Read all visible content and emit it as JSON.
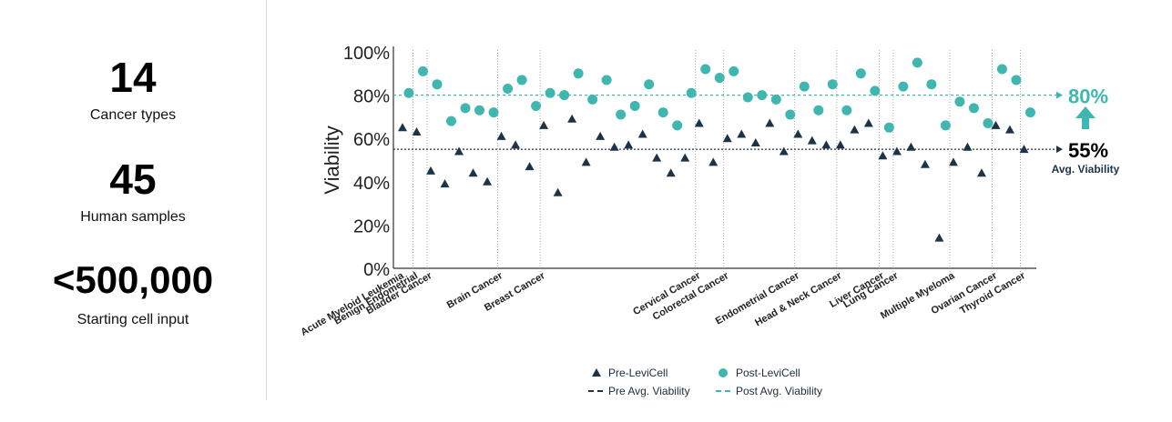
{
  "stats": [
    {
      "value": "14",
      "label": "Cancer types"
    },
    {
      "value": "45",
      "label": "Human samples"
    },
    {
      "value": "<500,000",
      "label": "Starting cell input"
    }
  ],
  "colors": {
    "pre": "#1d3348",
    "post": "#3fb7b0",
    "dark_text": "#000000",
    "gridline": "#999999"
  },
  "chart_data": {
    "type": "scatter",
    "ylabel": "Viability",
    "ylim": [
      0,
      100
    ],
    "yticks": [
      "0%",
      "20%",
      "40%",
      "60%",
      "80%",
      "100%"
    ],
    "categories": [
      {
        "name": "Acute Myeloid Leukemia",
        "pre": [
          65
        ],
        "post": [
          81
        ]
      },
      {
        "name": "Benign Endometrial",
        "pre": [
          63
        ],
        "post": [
          91
        ]
      },
      {
        "name": "Bladder Cancer",
        "pre": [
          45,
          39,
          54,
          44,
          40
        ],
        "post": [
          85,
          68,
          74,
          73,
          72
        ]
      },
      {
        "name": "Brain Cancer",
        "pre": [
          61,
          57,
          47
        ],
        "post": [
          83,
          87,
          75
        ]
      },
      {
        "name": "Breast Cancer",
        "pre": [
          66,
          35,
          69,
          49,
          61,
          56,
          57,
          62,
          51,
          44,
          51
        ],
        "post": [
          81,
          80,
          90,
          78,
          87,
          71,
          75,
          85,
          72,
          66,
          81
        ]
      },
      {
        "name": "Cervical Cancer",
        "pre": [
          67,
          49
        ],
        "post": [
          92,
          88
        ]
      },
      {
        "name": "Colorectal Cancer",
        "pre": [
          60,
          62,
          58,
          67,
          54
        ],
        "post": [
          91,
          79,
          80,
          78,
          71
        ]
      },
      {
        "name": "Endometrial Cancer",
        "pre": [
          62,
          59,
          57
        ],
        "post": [
          84,
          73,
          85
        ]
      },
      {
        "name": "Head & Neck Cancer",
        "pre": [
          57,
          64,
          67
        ],
        "post": [
          73,
          90,
          82
        ]
      },
      {
        "name": "Liver Cancer",
        "pre": [
          52
        ],
        "post": [
          65
        ]
      },
      {
        "name": "Lung Cancer",
        "pre": [
          54,
          56,
          48,
          14
        ],
        "post": [
          84,
          95,
          85,
          66
        ]
      },
      {
        "name": "Multiple Myeloma",
        "pre": [
          49,
          56,
          44
        ],
        "post": [
          77,
          74,
          67
        ]
      },
      {
        "name": "Ovarian Cancer",
        "pre": [
          66,
          64
        ],
        "post": [
          92,
          87
        ]
      },
      {
        "name": "Thyroid Cancer",
        "pre": [
          55
        ],
        "post": [
          72
        ]
      }
    ],
    "averages": {
      "pre": 55,
      "post": 80
    },
    "annotations": {
      "post_avg_label": "80%",
      "pre_avg_label": "55%",
      "avg_caption": "Avg. Viability"
    },
    "legend": {
      "pre_label": "Pre-LeviCell",
      "post_label": "Post-LeviCell",
      "pre_avg_label": "Pre Avg. Viability",
      "post_avg_label": "Post Avg. Viability",
      "position": "bottom"
    },
    "grid": false
  }
}
